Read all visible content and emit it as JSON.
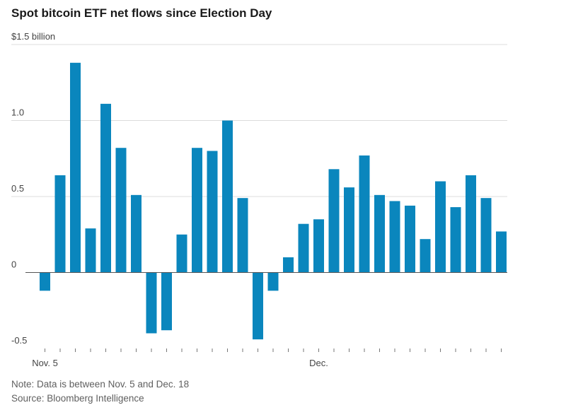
{
  "chart_data": {
    "type": "bar",
    "title": "Spot bitcoin ETF net flows since Election Day",
    "unit_label": "$1.5 billion",
    "ylim": [
      -0.5,
      1.5
    ],
    "y_ticks": [
      {
        "value": 1.5,
        "label": "$1.5 billion"
      },
      {
        "value": 1.0,
        "label": "1.0"
      },
      {
        "value": 0.5,
        "label": "0.5"
      },
      {
        "value": 0,
        "label": "0"
      },
      {
        "value": -0.5,
        "label": "-0.5"
      }
    ],
    "x_labels": [
      {
        "index": 0,
        "label": "Nov. 5"
      },
      {
        "index": 18,
        "label": "Dec."
      }
    ],
    "grid": true,
    "bar_color": "#0a86bd",
    "values": [
      -0.12,
      0.64,
      1.38,
      0.29,
      1.11,
      0.82,
      0.51,
      -0.4,
      -0.38,
      0.25,
      0.82,
      0.8,
      1.0,
      0.49,
      -0.44,
      -0.12,
      0.1,
      0.32,
      0.35,
      0.68,
      0.56,
      0.77,
      0.51,
      0.47,
      0.44,
      0.22,
      0.6,
      0.43,
      0.64,
      0.49,
      0.27
    ]
  },
  "footer": {
    "note": "Note: Data is between Nov. 5 and Dec. 18",
    "source": "Source: Bloomberg Intelligence"
  }
}
